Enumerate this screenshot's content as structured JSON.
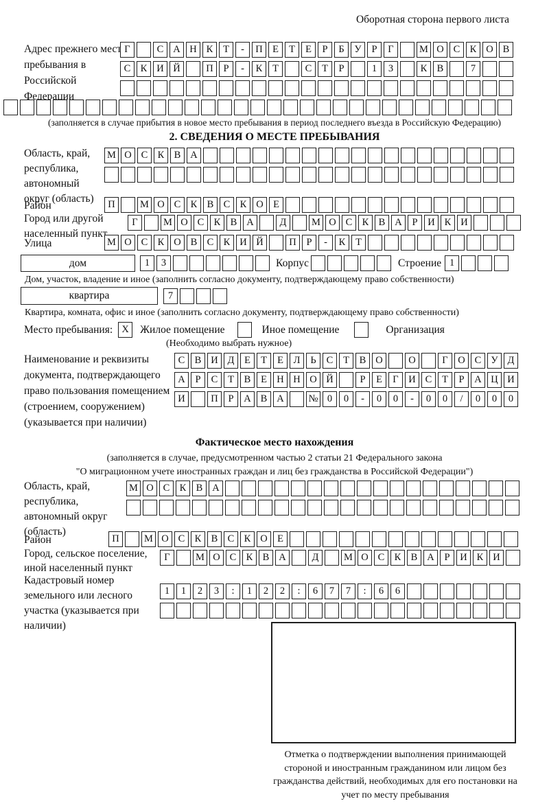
{
  "page": {
    "header_note": "Оборотная сторона первого листа"
  },
  "prev_address": {
    "label": "Адрес прежнего места пребывания в Российской Федерации",
    "rows": [
      {
        "text": "Г САНКТ-ПЕТЕРБУРГ МОСКОВ",
        "len": 24
      },
      {
        "text": "СКИЙ ПР-КТ СТР 13 КВ 7",
        "len": 24
      },
      {
        "text": "",
        "len": 24
      },
      {
        "text": "",
        "len": 31
      }
    ],
    "caption": "(заполняется в случае прибытия в новое место пребывания в период последнего въезда в Российскую Федерацию)"
  },
  "stay_info": {
    "title": "2. СВЕДЕНИЯ О МЕСТЕ ПРЕБЫВАНИЯ",
    "region_label": "Область, край, республика, автономный округ (область)",
    "region_rows": [
      {
        "text": "МОСКВА",
        "len": 25
      },
      {
        "text": "",
        "len": 25
      }
    ],
    "district_label": "Район",
    "district_row": {
      "text": "П МОСКВСКОЕ",
      "len": 25
    },
    "city_label": "Город или другой населенный пункт",
    "city_row": {
      "text": "Г МОСКВА Д МОСКВАРИКИ",
      "len": 24
    },
    "street_label": "Улица",
    "street_row": {
      "text": "МОСКОВСКИЙ ПР-КТ",
      "len": 25
    },
    "house": {
      "label": "дом",
      "number_row": {
        "text": "13",
        "len": 8
      },
      "korpus_label": "Корпус",
      "korpus_row": {
        "text": "",
        "len": 5
      },
      "stroenie_label": "Строение",
      "stroenie_row": {
        "text": "1",
        "len": 4
      },
      "caption": "Дом, участок, владение и иное (заполнить согласно документу, подтверждающему право собственности)"
    },
    "apartment": {
      "label": "квартира",
      "number_row": {
        "text": "7",
        "len": 4
      },
      "caption": "Квартира, комната, офис и иное (заполнить согласно документу, подтверждающему право собственности)"
    },
    "stay_type": {
      "label": "Место пребывания:",
      "options": [
        {
          "label": "Жилое помещение",
          "mark": "X"
        },
        {
          "label": "Иное помещение",
          "mark": ""
        },
        {
          "label": "Организация",
          "mark": ""
        }
      ],
      "note": "(Необходимо выбрать нужное)"
    },
    "doc": {
      "label": "Наименование и реквизиты документа, подтверждающего право пользования помещением (строением, сооружением) (указывается при наличии)",
      "rows": [
        {
          "text": "СВИДЕТЕЛЬСТВО О ГОСУД",
          "len": 21
        },
        {
          "text": "АРСТВЕННОЙ РЕГИСТРАЦИ",
          "len": 21
        },
        {
          "text": "И ПРАВА №00-00-00/000",
          "len": 21
        }
      ]
    }
  },
  "actual_location": {
    "title": "Фактическое место нахождения",
    "caption_line1": "(заполняется в случае, предусмотренном частью 2 статьи 21 Федерального закона",
    "caption_line2": "\"О миграционном учете иностранных граждан и лиц без гражданства в Российской Федерации\")",
    "region_label": "Область, край, республика, автономный округ (область)",
    "region_rows": [
      {
        "text": "МОСКВА",
        "len": 24
      },
      {
        "text": "",
        "len": 24
      }
    ],
    "district_label": "Район",
    "district_row": {
      "text": "П МОСКВСКОЕ",
      "len": 25
    },
    "city_label": "Город, сельское поселение, иной населенный пункт",
    "city_row": {
      "text": "Г МОСКВА Д МОСКВАРИКИ",
      "len": 22
    },
    "cadastral_label": "Кадастровый номер земельного или лесного участка (указывается при наличии)",
    "cadastral_rows": [
      {
        "text": "1123:122:677:66",
        "len": 22
      },
      {
        "text": "",
        "len": 22
      }
    ],
    "stamp_caption": "Отметка о подтверждении выполнения принимающей стороной и иностранным гражданином или лицом без гражданства действий, необходимых для его постановки на учет по месту пребывания"
  }
}
